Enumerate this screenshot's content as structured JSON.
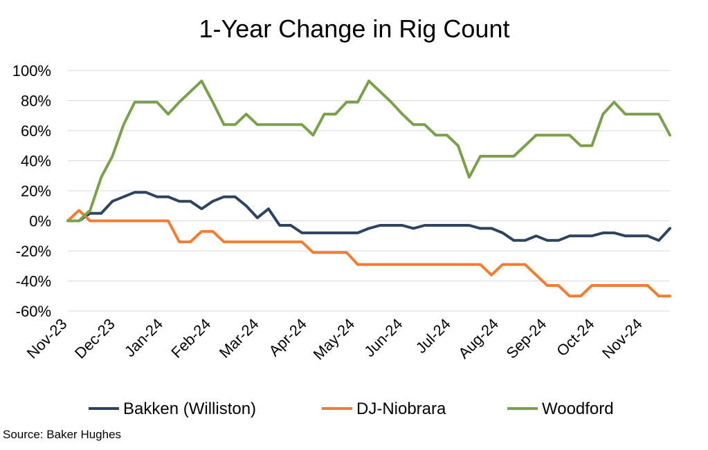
{
  "chart_data": {
    "type": "line",
    "title": "1-Year Change in Rig Count",
    "xlabel": "",
    "ylabel": "",
    "source": "Source: Baker Hughes",
    "ylim": [
      -0.6,
      1.0
    ],
    "y_ticks": [
      -0.6,
      -0.4,
      -0.2,
      0,
      0.2,
      0.4,
      0.6,
      0.8,
      1.0
    ],
    "y_tick_labels": [
      "-60%",
      "-40%",
      "-20%",
      "0%",
      "20%",
      "40%",
      "60%",
      "80%",
      "100%"
    ],
    "x_tick_labels": [
      "Nov-23",
      "Dec-23",
      "Jan-24",
      "Feb-24",
      "Mar-24",
      "Apr-24",
      "May-24",
      "Jun-24",
      "Jul-24",
      "Aug-24",
      "Sep-24",
      "Oct-24",
      "Nov-24"
    ],
    "x_tick_index": [
      0,
      4.3,
      8.6,
      12.9,
      17.2,
      21.5,
      25.8,
      30.1,
      34.4,
      38.7,
      43,
      47.3,
      51.6
    ],
    "grid": true,
    "legend_position": "bottom",
    "series": [
      {
        "name": "Bakken (Williston)",
        "color": "#2e4360",
        "values": [
          0,
          0,
          0.05,
          0.05,
          0.13,
          0.16,
          0.19,
          0.19,
          0.16,
          0.16,
          0.13,
          0.13,
          0.08,
          0.13,
          0.16,
          0.16,
          0.1,
          0.02,
          0.08,
          -0.03,
          -0.03,
          -0.08,
          -0.08,
          -0.08,
          -0.08,
          -0.08,
          -0.08,
          -0.05,
          -0.03,
          -0.03,
          -0.03,
          -0.05,
          -0.03,
          -0.03,
          -0.03,
          -0.03,
          -0.03,
          -0.05,
          -0.05,
          -0.08,
          -0.13,
          -0.13,
          -0.1,
          -0.13,
          -0.13,
          -0.1,
          -0.1,
          -0.1,
          -0.08,
          -0.08,
          -0.1,
          -0.1,
          -0.1,
          -0.13,
          -0.05
        ]
      },
      {
        "name": "DJ-Niobrara",
        "color": "#f47c30",
        "values": [
          0,
          0.07,
          0,
          0,
          0,
          0,
          0,
          0,
          0,
          0,
          -0.14,
          -0.14,
          -0.07,
          -0.07,
          -0.14,
          -0.14,
          -0.14,
          -0.14,
          -0.14,
          -0.14,
          -0.14,
          -0.14,
          -0.21,
          -0.21,
          -0.21,
          -0.21,
          -0.29,
          -0.29,
          -0.29,
          -0.29,
          -0.29,
          -0.29,
          -0.29,
          -0.29,
          -0.29,
          -0.29,
          -0.29,
          -0.29,
          -0.36,
          -0.29,
          -0.29,
          -0.29,
          -0.36,
          -0.43,
          -0.43,
          -0.5,
          -0.5,
          -0.43,
          -0.43,
          -0.43,
          -0.43,
          -0.43,
          -0.43,
          -0.5,
          -0.5
        ]
      },
      {
        "name": "Woodford",
        "color": "#7aa04a",
        "values": [
          0,
          0,
          0.07,
          0.29,
          0.43,
          0.64,
          0.79,
          0.79,
          0.79,
          0.71,
          0.79,
          0.86,
          0.93,
          0.79,
          0.64,
          0.64,
          0.71,
          0.64,
          0.64,
          0.64,
          0.64,
          0.64,
          0.57,
          0.71,
          0.71,
          0.79,
          0.79,
          0.93,
          0.86,
          0.79,
          0.71,
          0.64,
          0.64,
          0.57,
          0.57,
          0.5,
          0.29,
          0.43,
          0.43,
          0.43,
          0.43,
          0.5,
          0.57,
          0.57,
          0.57,
          0.57,
          0.5,
          0.5,
          0.71,
          0.79,
          0.71,
          0.71,
          0.71,
          0.71,
          0.57
        ]
      }
    ]
  }
}
